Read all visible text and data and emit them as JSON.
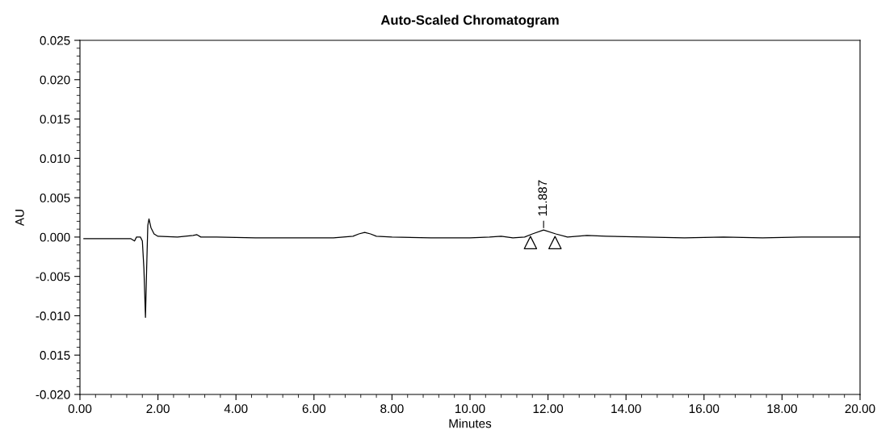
{
  "chart_data": {
    "type": "line",
    "title": "Auto-Scaled Chromatogram",
    "xlabel": "Minutes",
    "ylabel": "AU",
    "series": [
      {
        "color": "#000000",
        "x": [
          0.1,
          0.5,
          1.0,
          1.3,
          1.4,
          1.45,
          1.55,
          1.6,
          1.64,
          1.68,
          1.71,
          1.74,
          1.77,
          1.82,
          1.9,
          2.0,
          2.5,
          2.9,
          3.0,
          3.1,
          3.5,
          4.5,
          5.5,
          6.5,
          7.0,
          7.15,
          7.3,
          7.45,
          7.6,
          8.0,
          9.0,
          10.0,
          10.5,
          10.8,
          11.1,
          11.4,
          11.6,
          11.887,
          12.2,
          12.5,
          13.0,
          13.5,
          14.5,
          15.5,
          16.5,
          17.5,
          18.5,
          19.5,
          20.0
        ],
        "values": [
          -0.0002,
          -0.0002,
          -0.0002,
          -0.0002,
          -0.0005,
          0.0,
          0.0,
          -0.0005,
          -0.004,
          -0.0102,
          -0.004,
          0.0015,
          0.0023,
          0.0012,
          0.0004,
          0.0001,
          0.0,
          0.0002,
          0.0003,
          0.0,
          0.0,
          -0.0001,
          -0.0001,
          -0.0001,
          0.0001,
          0.0004,
          0.0006,
          0.0004,
          0.0001,
          0.0,
          -0.0001,
          -0.0001,
          0.0,
          0.0001,
          -0.0001,
          0.0,
          0.0004,
          0.0009,
          0.0004,
          0.0,
          0.0002,
          0.0001,
          0.0,
          -0.0001,
          0.0,
          -0.0001,
          0.0,
          0.0,
          0.0
        ]
      },
      {
        "type": "scatter",
        "marker": "triangle",
        "color": "#000000",
        "x": [
          11.55,
          12.18
        ],
        "values": [
          -0.0007,
          -0.0007
        ]
      }
    ],
    "annotations": [
      {
        "text": "11.887",
        "x": 11.887,
        "y": 0.0009
      }
    ],
    "xlim": [
      0,
      20
    ],
    "xticks": [
      {
        "value": 0,
        "label": "0.00"
      },
      {
        "value": 2,
        "label": "2.00"
      },
      {
        "value": 4,
        "label": "4.00"
      },
      {
        "value": 6,
        "label": "6.00"
      },
      {
        "value": 8,
        "label": "8.00"
      },
      {
        "value": 10,
        "label": "10.00"
      },
      {
        "value": 12,
        "label": "12.00"
      },
      {
        "value": 14,
        "label": "14.00"
      },
      {
        "value": 16,
        "label": "16.00"
      },
      {
        "value": 18,
        "label": "18.00"
      },
      {
        "value": 20,
        "label": "20.00"
      }
    ],
    "ylim": [
      -0.02,
      0.025
    ],
    "yticks": [
      {
        "value": -0.02,
        "label": "-0.020"
      },
      {
        "value": -0.015,
        "label": "0.015"
      },
      {
        "value": -0.01,
        "label": "-0.010"
      },
      {
        "value": -0.005,
        "label": "-0.005"
      },
      {
        "value": 0,
        "label": "0.000"
      },
      {
        "value": 0.005,
        "label": "0.005"
      },
      {
        "value": 0.01,
        "label": "0.010"
      },
      {
        "value": 0.015,
        "label": "0.015"
      },
      {
        "value": 0.02,
        "label": "0.020"
      },
      {
        "value": 0.025,
        "label": "0.025"
      }
    ],
    "grid": false,
    "legend": false
  }
}
